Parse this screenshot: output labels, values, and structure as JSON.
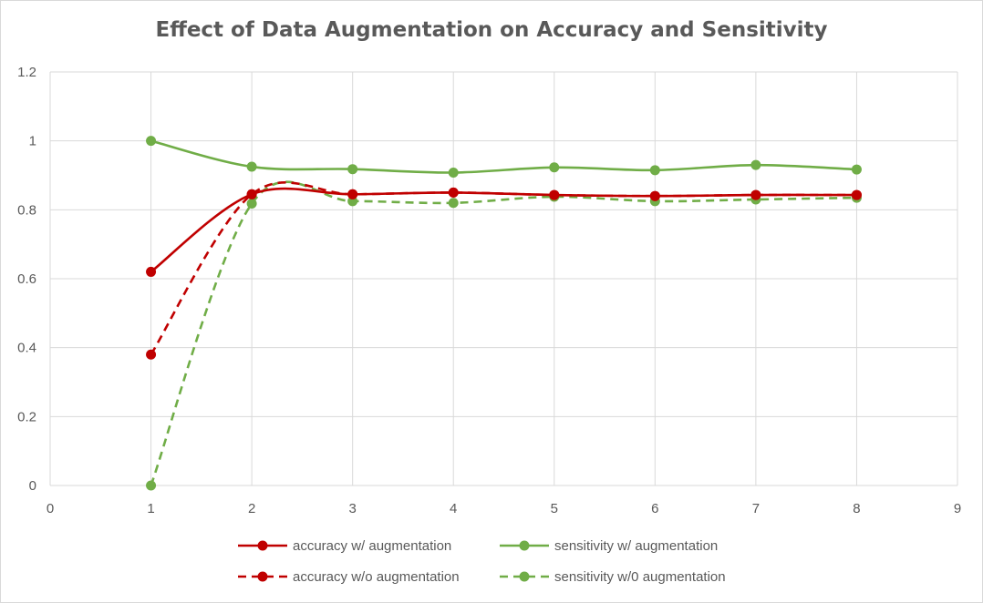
{
  "chart_data": {
    "type": "line",
    "title": "Effect of Data Augmentation on Accuracy and Sensitivity",
    "xlim": [
      0,
      9
    ],
    "ylim": [
      0,
      1.2
    ],
    "x_ticks": [
      "0",
      "1",
      "2",
      "3",
      "4",
      "5",
      "6",
      "7",
      "8",
      "9"
    ],
    "y_ticks": [
      "0",
      "0.2",
      "0.4",
      "0.6",
      "0.8",
      "1",
      "1.2"
    ],
    "grid": true,
    "legend_position": "bottom",
    "x": [
      1,
      2,
      3,
      4,
      5,
      6,
      7,
      8
    ],
    "series": [
      {
        "name": "accuracy w/ augmentation",
        "values": [
          0.62,
          0.845,
          0.845,
          0.85,
          0.843,
          0.84,
          0.843,
          0.843
        ],
        "color": "#c00000",
        "style": "solid"
      },
      {
        "name": "sensitivity w/ augmentation",
        "values": [
          1.0,
          0.925,
          0.918,
          0.908,
          0.923,
          0.915,
          0.93,
          0.917
        ],
        "color": "#70ad47",
        "style": "solid"
      },
      {
        "name": "accuracy w/o augmentation",
        "values": [
          0.38,
          0.845,
          0.845,
          0.85,
          0.843,
          0.84,
          0.843,
          0.843
        ],
        "color": "#c00000",
        "style": "dashed"
      },
      {
        "name": "sensitivity w/0 augmentation",
        "values": [
          0.0,
          0.818,
          0.825,
          0.82,
          0.838,
          0.825,
          0.83,
          0.835
        ],
        "color": "#70ad47",
        "style": "dashed"
      }
    ]
  }
}
